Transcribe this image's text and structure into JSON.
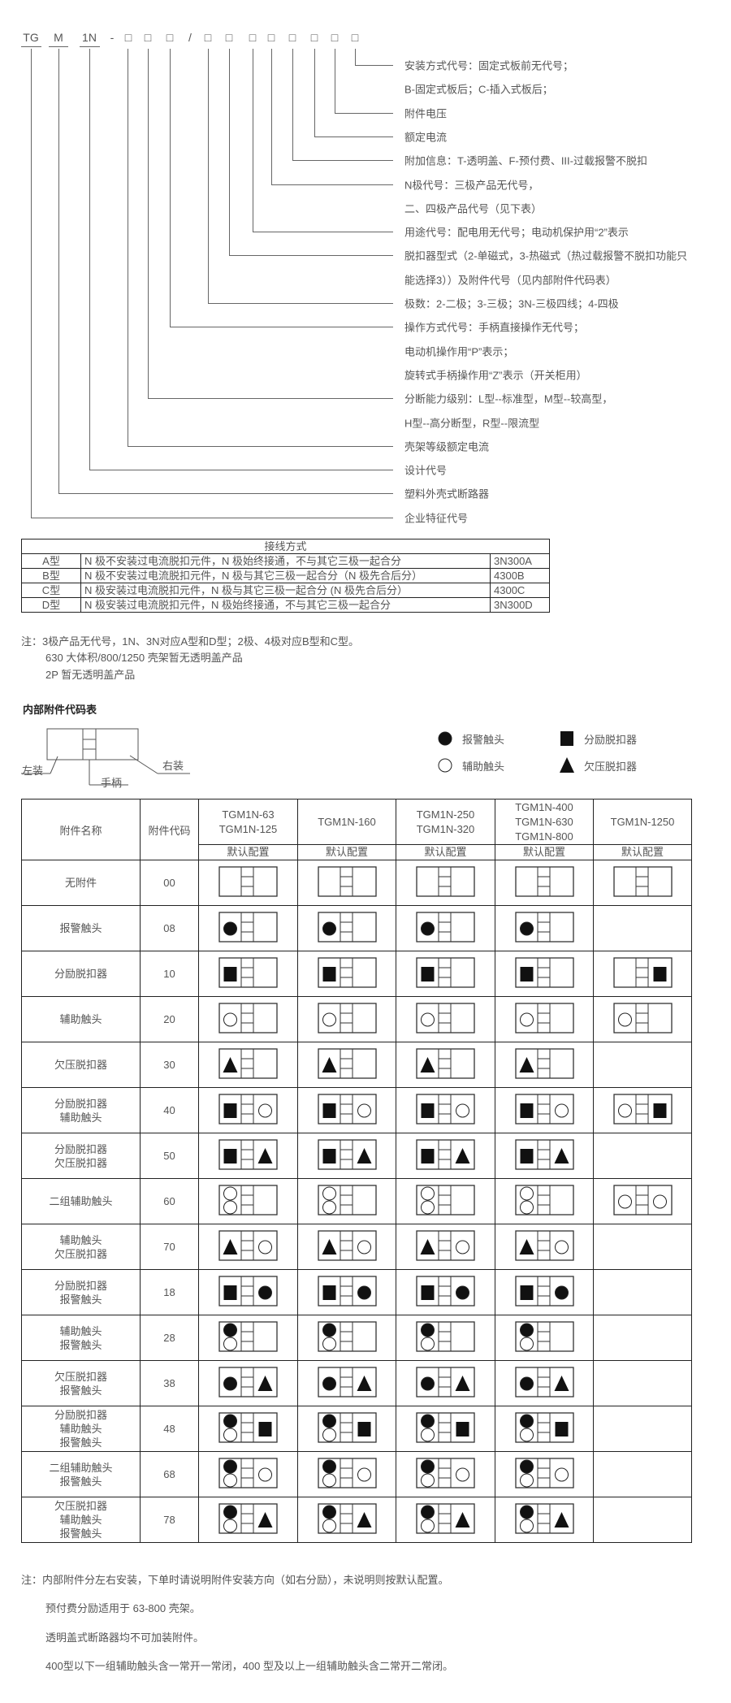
{
  "model_code": {
    "symbols": [
      "TG",
      "M",
      "1N",
      "-",
      "□",
      "□",
      "□",
      "/",
      "□",
      "□",
      "□",
      "□",
      "□",
      "□",
      "□",
      "□"
    ],
    "labels": [
      "安装方式代号：固定式板前无代号；",
      "B-固定式板后；C-插入式板后；",
      "附件电压",
      "额定电流",
      "附加信息：T-透明盖、F-预付费、III-过载报警不脱扣",
      "N极代号：三极产品无代号，",
      "二、四极产品代号（见下表）",
      "用途代号：配电用无代号；电动机保护用“2”表示",
      "脱扣器型式（2-单磁式，3-热磁式（热过载报警不脱扣功能只",
      "能选择3））及附件代号（见内部附件代码表）",
      "极数：2-二极；3-三极；3N-三极四线；4-四极",
      "操作方式代号：手柄直接操作无代号；",
      "电动机操作用“P”表示；",
      "旋转式手柄操作用“Z”表示（开关柜用）",
      "分断能力级别：L型--标准型，M型--较高型，",
      "H型--高分断型，R型--限流型",
      "壳架等级额定电流",
      "设计代号",
      "塑料外壳式断路器",
      "企业特征代号"
    ]
  },
  "wiring_table": {
    "title": "接线方式",
    "rows": [
      {
        "type": "A型",
        "desc": "N 极不安装过电流脱扣元件，N 极始终接通，不与其它三极一起合分",
        "code": "3N300A"
      },
      {
        "type": "B型",
        "desc": "N 极不安装过电流脱扣元件，N 极与其它三极一起合分（N 极先合后分）",
        "code": "4300B"
      },
      {
        "type": "C型",
        "desc": "N 极安装过电流脱扣元件，N 极与其它三极一起合分 (N 极先合后分）",
        "code": "4300C"
      },
      {
        "type": "D型",
        "desc": "N 极安装过电流脱扣元件，N 极始终接通，不与其它三极一起合分",
        "code": "3N300D"
      }
    ]
  },
  "wiring_notes": [
    "注：3极产品无代号，1N、3N对应A型和D型；2极、4极对应B型和C型。",
    "630 大体积/800/1250 壳架暂无透明盖产品",
    "2P 暂无透明盖产品"
  ],
  "accessory_section": {
    "title": "内部附件代码表",
    "diagram_labels": {
      "left": "左装",
      "right": "右装",
      "handle": "手柄"
    },
    "legend": [
      {
        "symbol": "alarm",
        "label": "报警触头"
      },
      {
        "symbol": "shunt",
        "label": "分励脱扣器"
      },
      {
        "symbol": "aux",
        "label": "辅助触头"
      },
      {
        "symbol": "undervoltage",
        "label": "欠压脱扣器"
      }
    ]
  },
  "accessory_table": {
    "headers": {
      "name": "附件名称",
      "code": "附件代码",
      "default": "默认配置"
    },
    "models": [
      [
        "TGM1N-63",
        "TGM1N-125"
      ],
      [
        "TGM1N-160"
      ],
      [
        "TGM1N-250",
        "TGM1N-320"
      ],
      [
        "TGM1N-400",
        "TGM1N-630",
        "TGM1N-800"
      ],
      [
        "TGM1N-1250"
      ]
    ],
    "rows": [
      {
        "name": [
          "无附件"
        ],
        "code": "00",
        "configs": [
          {
            "l": [],
            "r": []
          },
          {
            "l": [],
            "r": []
          },
          {
            "l": [],
            "r": []
          },
          {
            "l": [],
            "r": []
          },
          {
            "l": [],
            "r": []
          }
        ]
      },
      {
        "name": [
          "报警触头"
        ],
        "code": "08",
        "configs": [
          {
            "l": [
              "alarm"
            ],
            "r": []
          },
          {
            "l": [
              "alarm"
            ],
            "r": []
          },
          {
            "l": [
              "alarm"
            ],
            "r": []
          },
          {
            "l": [
              "alarm"
            ],
            "r": []
          },
          null
        ]
      },
      {
        "name": [
          "分励脱扣器"
        ],
        "code": "10",
        "configs": [
          {
            "l": [
              "shunt"
            ],
            "r": []
          },
          {
            "l": [
              "shunt"
            ],
            "r": []
          },
          {
            "l": [
              "shunt"
            ],
            "r": []
          },
          {
            "l": [
              "shunt"
            ],
            "r": []
          },
          {
            "l": [],
            "r": [
              "shunt"
            ]
          }
        ]
      },
      {
        "name": [
          "辅助触头"
        ],
        "code": "20",
        "configs": [
          {
            "l": [
              "aux"
            ],
            "r": []
          },
          {
            "l": [
              "aux"
            ],
            "r": []
          },
          {
            "l": [
              "aux"
            ],
            "r": []
          },
          {
            "l": [
              "aux"
            ],
            "r": []
          },
          {
            "l": [
              "aux"
            ],
            "r": []
          }
        ]
      },
      {
        "name": [
          "欠压脱扣器"
        ],
        "code": "30",
        "configs": [
          {
            "l": [
              "undervoltage"
            ],
            "r": []
          },
          {
            "l": [
              "undervoltage"
            ],
            "r": []
          },
          {
            "l": [
              "undervoltage"
            ],
            "r": []
          },
          {
            "l": [
              "undervoltage"
            ],
            "r": []
          },
          null
        ]
      },
      {
        "name": [
          "分励脱扣器",
          "辅助触头"
        ],
        "code": "40",
        "configs": [
          {
            "l": [
              "shunt"
            ],
            "r": [
              "aux"
            ]
          },
          {
            "l": [
              "shunt"
            ],
            "r": [
              "aux"
            ]
          },
          {
            "l": [
              "shunt"
            ],
            "r": [
              "aux"
            ]
          },
          {
            "l": [
              "shunt"
            ],
            "r": [
              "aux"
            ]
          },
          {
            "l": [
              "aux"
            ],
            "r": [
              "shunt"
            ]
          }
        ]
      },
      {
        "name": [
          "分励脱扣器",
          "欠压脱扣器"
        ],
        "code": "50",
        "configs": [
          {
            "l": [
              "shunt"
            ],
            "r": [
              "undervoltage"
            ]
          },
          {
            "l": [
              "shunt"
            ],
            "r": [
              "undervoltage"
            ]
          },
          {
            "l": [
              "shunt"
            ],
            "r": [
              "undervoltage"
            ]
          },
          {
            "l": [
              "shunt"
            ],
            "r": [
              "undervoltage"
            ]
          },
          null
        ]
      },
      {
        "name": [
          "二组辅助触头"
        ],
        "code": "60",
        "configs": [
          {
            "l": [
              "aux",
              "aux"
            ],
            "r": []
          },
          {
            "l": [
              "aux",
              "aux"
            ],
            "r": []
          },
          {
            "l": [
              "aux",
              "aux"
            ],
            "r": []
          },
          {
            "l": [
              "aux",
              "aux"
            ],
            "r": []
          },
          {
            "l": [
              "aux"
            ],
            "r": [
              "aux"
            ]
          }
        ]
      },
      {
        "name": [
          "辅助触头",
          "欠压脱扣器"
        ],
        "code": "70",
        "configs": [
          {
            "l": [
              "undervoltage"
            ],
            "r": [
              "aux"
            ]
          },
          {
            "l": [
              "undervoltage"
            ],
            "r": [
              "aux"
            ]
          },
          {
            "l": [
              "undervoltage"
            ],
            "r": [
              "aux"
            ]
          },
          {
            "l": [
              "undervoltage"
            ],
            "r": [
              "aux"
            ]
          },
          null
        ]
      },
      {
        "name": [
          "分励脱扣器",
          "报警触头"
        ],
        "code": "18",
        "configs": [
          {
            "l": [
              "shunt"
            ],
            "r": [
              "alarm"
            ]
          },
          {
            "l": [
              "shunt"
            ],
            "r": [
              "alarm"
            ]
          },
          {
            "l": [
              "shunt"
            ],
            "r": [
              "alarm"
            ]
          },
          {
            "l": [
              "shunt"
            ],
            "r": [
              "alarm"
            ]
          },
          null
        ]
      },
      {
        "name": [
          "辅助触头",
          "报警触头"
        ],
        "code": "28",
        "configs": [
          {
            "l": [
              "alarm",
              "aux"
            ],
            "r": []
          },
          {
            "l": [
              "alarm",
              "aux"
            ],
            "r": []
          },
          {
            "l": [
              "alarm",
              "aux"
            ],
            "r": []
          },
          {
            "l": [
              "alarm",
              "aux"
            ],
            "r": []
          },
          null
        ]
      },
      {
        "name": [
          "欠压脱扣器",
          "报警触头"
        ],
        "code": "38",
        "configs": [
          {
            "l": [
              "alarm"
            ],
            "r": [
              "undervoltage"
            ]
          },
          {
            "l": [
              "alarm"
            ],
            "r": [
              "undervoltage"
            ]
          },
          {
            "l": [
              "alarm"
            ],
            "r": [
              "undervoltage"
            ]
          },
          {
            "l": [
              "alarm"
            ],
            "r": [
              "undervoltage"
            ]
          },
          null
        ]
      },
      {
        "name": [
          "分励脱扣器",
          "辅助触头",
          "报警触头"
        ],
        "code": "48",
        "configs": [
          {
            "l": [
              "alarm",
              "aux"
            ],
            "r": [
              "shunt"
            ]
          },
          {
            "l": [
              "alarm",
              "aux"
            ],
            "r": [
              "shunt"
            ]
          },
          {
            "l": [
              "alarm",
              "aux"
            ],
            "r": [
              "shunt"
            ]
          },
          {
            "l": [
              "alarm",
              "aux"
            ],
            "r": [
              "shunt"
            ]
          },
          null
        ]
      },
      {
        "name": [
          "二组辅助触头",
          "报警触头"
        ],
        "code": "68",
        "configs": [
          {
            "l": [
              "alarm",
              "aux"
            ],
            "r": [
              "aux"
            ]
          },
          {
            "l": [
              "alarm",
              "aux"
            ],
            "r": [
              "aux"
            ]
          },
          {
            "l": [
              "alarm",
              "aux"
            ],
            "r": [
              "aux"
            ]
          },
          {
            "l": [
              "alarm",
              "aux"
            ],
            "r": [
              "aux"
            ]
          },
          null
        ]
      },
      {
        "name": [
          "欠压脱扣器",
          "辅助触头",
          "报警触头"
        ],
        "code": "78",
        "configs": [
          {
            "l": [
              "alarm",
              "aux"
            ],
            "r": [
              "undervoltage"
            ]
          },
          {
            "l": [
              "alarm",
              "aux"
            ],
            "r": [
              "undervoltage"
            ]
          },
          {
            "l": [
              "alarm",
              "aux"
            ],
            "r": [
              "undervoltage"
            ]
          },
          {
            "l": [
              "alarm",
              "aux"
            ],
            "r": [
              "undervoltage"
            ]
          },
          null
        ]
      }
    ]
  },
  "footer_notes": [
    "注：内部附件分左右安装，下单时请说明附件安装方向（如右分励），未说明则按默认配置。",
    "预付费分励适用于 63-800 壳架。",
    "透明盖式断路器均不可加装附件。",
    "400型以下一组辅助触头含一常开一常闭，400 型及以上一组辅助触头含二常开二常闭。"
  ],
  "colors": {
    "text": "#555555",
    "border": "#222222",
    "symbol_fill": "#111111"
  }
}
